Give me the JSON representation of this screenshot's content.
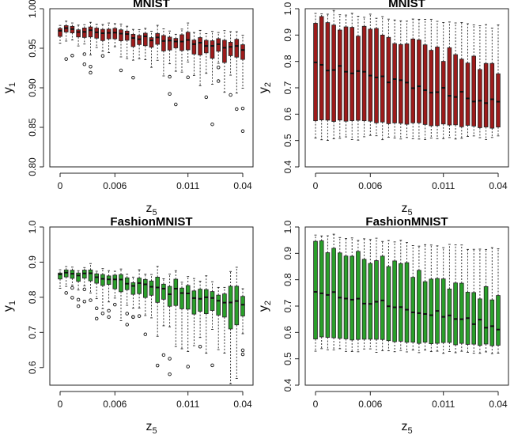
{
  "chart_data": [
    {
      "id": "p1",
      "type": "boxplot",
      "title": "MNIST",
      "xlabel": "z",
      "xlabel_sub": "5",
      "ylabel": "y",
      "ylabel_sub": "1",
      "ylim": [
        0.8,
        1.0
      ],
      "yticks": [
        "0.80",
        "0.85",
        "0.90",
        "0.95",
        "1.00"
      ],
      "xticks": [
        "0",
        "0.006",
        "0.011",
        "0.04"
      ],
      "xtick_positions": [
        1,
        10,
        22,
        31
      ],
      "n_boxes": 31,
      "box_color": "#9e1b1b",
      "series_summary": {
        "median_start": 0.975,
        "median_end": 0.95,
        "q_width_start": 0.008,
        "q_width_end": 0.02,
        "noise": 0.006
      }
    },
    {
      "id": "p2",
      "type": "boxplot",
      "title": "MNIST",
      "xlabel": "z",
      "xlabel_sub": "5",
      "ylabel": "y",
      "ylabel_sub": "2",
      "ylim": [
        0.4,
        1.0
      ],
      "yticks": [
        "0.4",
        "0.5",
        "0.6",
        "0.7",
        "0.8",
        "0.9",
        "1.0"
      ],
      "xticks": [
        "0",
        "0.006",
        "0.011",
        "0.04"
      ],
      "xtick_positions": [
        1,
        10,
        22,
        31
      ],
      "n_boxes": 31,
      "box_color": "#9e1b1b",
      "series_summary": {
        "median_start": 0.79,
        "median_end": 0.64,
        "q1_start": 0.58,
        "q1_end": 0.55,
        "q3_start": 0.97,
        "q3_end": 0.77,
        "whisker_low": 0.51,
        "whisker_high": 0.99
      }
    },
    {
      "id": "p3",
      "type": "boxplot",
      "title": "FashionMNIST",
      "xlabel": "z",
      "xlabel_sub": "5",
      "ylabel": "y",
      "ylabel_sub": "1",
      "ylim": [
        0.55,
        1.0
      ],
      "yticks": [
        "0.6",
        "0.7",
        "0.8",
        "0.9",
        "1.0"
      ],
      "xticks": [
        "0",
        "0.006",
        "0.011",
        "0.04"
      ],
      "xtick_positions": [
        1,
        10,
        22,
        31
      ],
      "n_boxes": 31,
      "box_color": "#2aa02a",
      "series_summary": {
        "median_start": 0.875,
        "median_end": 0.78,
        "q_width_start": 0.015,
        "q_width_end": 0.07,
        "noise": 0.02
      }
    },
    {
      "id": "p4",
      "type": "boxplot",
      "title": "FashionMNIST",
      "xlabel": "z",
      "xlabel_sub": "5",
      "ylabel": "y",
      "ylabel_sub": "2",
      "ylim": [
        0.4,
        1.0
      ],
      "yticks": [
        "0.4",
        "0.5",
        "0.6",
        "0.7",
        "0.8",
        "0.9",
        "1.0"
      ],
      "xticks": [
        "0",
        "0.006",
        "0.011",
        "0.04"
      ],
      "xtick_positions": [
        1,
        10,
        22,
        31
      ],
      "n_boxes": 31,
      "box_color": "#2aa02a",
      "series_summary": {
        "median_start": 0.76,
        "median_end": 0.62,
        "q1_start": 0.58,
        "q1_end": 0.55,
        "q3_start": 0.94,
        "q3_end": 0.73,
        "whisker_low": 0.53,
        "whisker_high": 0.97
      }
    }
  ]
}
